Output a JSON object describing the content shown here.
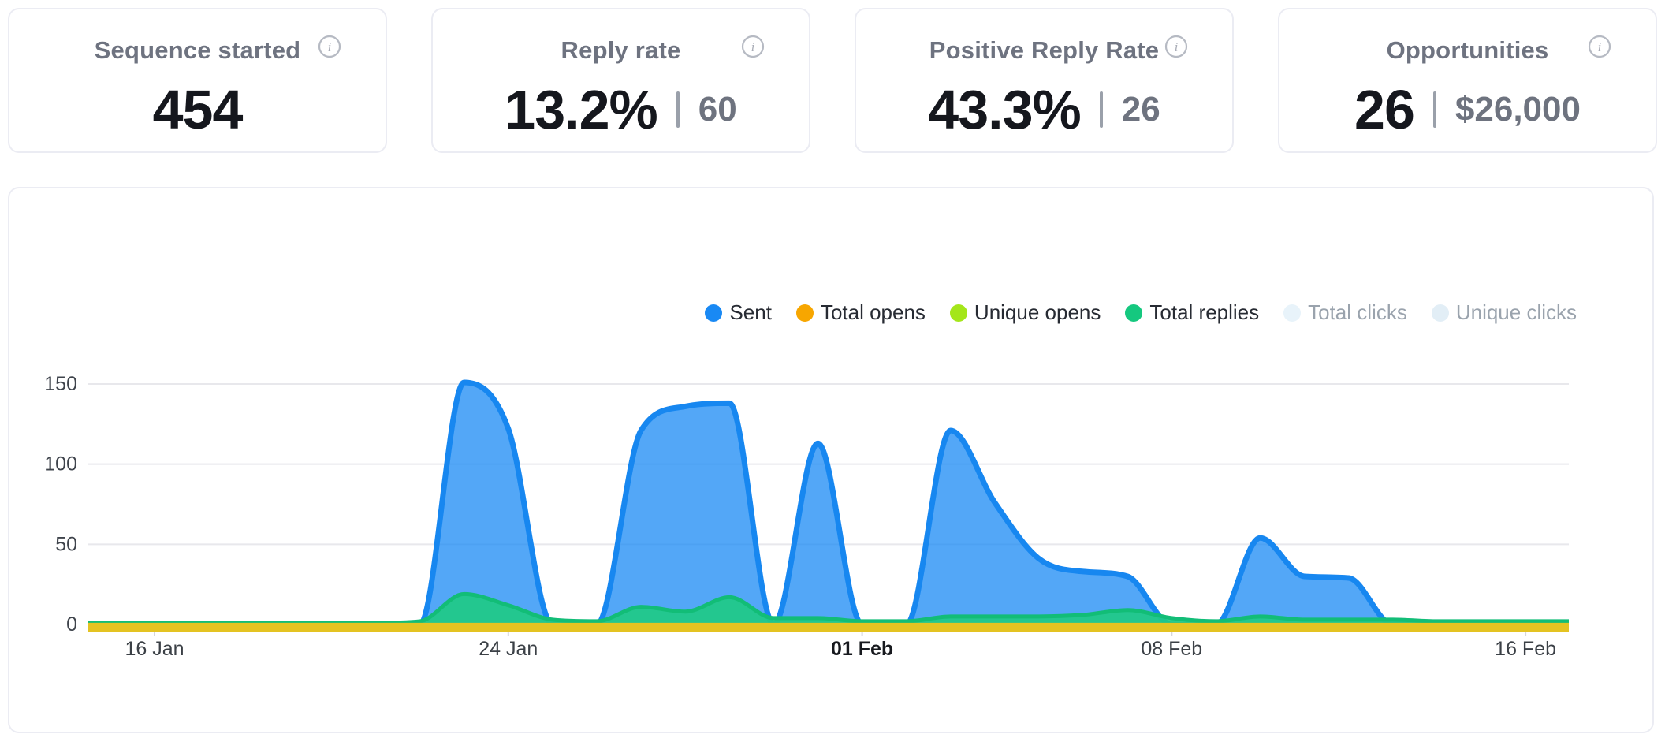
{
  "stat_cards": [
    {
      "title": "Sequence started",
      "value": "454",
      "secondary": ""
    },
    {
      "title": "Reply rate",
      "value": "13.2%",
      "secondary": "60"
    },
    {
      "title": "Positive Reply Rate",
      "value": "43.3%",
      "secondary": "26"
    },
    {
      "title": "Opportunities",
      "value": "26",
      "secondary": "$26,000"
    }
  ],
  "chart": {
    "legend": [
      {
        "label": "Sent",
        "color": "#1989f4",
        "active": true
      },
      {
        "label": "Total opens",
        "color": "#f7a600",
        "active": true
      },
      {
        "label": "Unique opens",
        "color": "#a4e61a",
        "active": true
      },
      {
        "label": "Total replies",
        "color": "#15c87f",
        "active": true
      },
      {
        "label": "Total clicks",
        "color": "#e8f3fa",
        "active": false
      },
      {
        "label": "Unique clicks",
        "color": "#e2eef6",
        "active": false
      }
    ]
  },
  "chart_data": {
    "type": "area",
    "x": [
      "14 Jan",
      "15 Jan",
      "16 Jan",
      "17 Jan",
      "18 Jan",
      "19 Jan",
      "20 Jan",
      "21 Jan",
      "22 Jan",
      "23 Jan",
      "24 Jan",
      "25 Jan",
      "26 Jan",
      "27 Jan",
      "28 Jan",
      "29 Jan",
      "30 Jan",
      "31 Jan",
      "01 Feb",
      "02 Feb",
      "03 Feb",
      "04 Feb",
      "05 Feb",
      "06 Feb",
      "07 Feb",
      "08 Feb",
      "09 Feb",
      "10 Feb",
      "11 Feb",
      "12 Feb",
      "13 Feb",
      "14 Feb",
      "15 Feb",
      "16 Feb",
      "17 Feb"
    ],
    "series": [
      {
        "name": "Sent",
        "color": "#1787f0",
        "fill": "rgba(25,137,244,0.75)",
        "width": 7,
        "dy": 0,
        "values": [
          0,
          0,
          0,
          0,
          0,
          0,
          0,
          0,
          0,
          151,
          122,
          0,
          0,
          121,
          136,
          138,
          0,
          113,
          0,
          0,
          121,
          76,
          41,
          33,
          30,
          0,
          0,
          54,
          30,
          29,
          0,
          0,
          0,
          0,
          0
        ]
      },
      {
        "name": "Total replies",
        "color": "#12bd77",
        "fill": "rgba(31,202,133,0.92)",
        "width": 5,
        "dy": 0,
        "values": [
          1,
          1,
          1,
          1,
          1,
          1,
          1,
          1,
          2,
          19,
          12,
          3,
          2,
          11,
          8,
          17,
          4,
          4,
          2,
          2,
          5,
          5,
          5,
          6,
          9,
          4,
          2,
          5,
          3,
          3,
          3,
          2,
          2,
          2,
          2
        ]
      },
      {
        "name": "Unique opens",
        "color": "#a4e61a",
        "fill": null,
        "width": 4,
        "dy": 8,
        "values": [
          1,
          1,
          1,
          1,
          1,
          1,
          1,
          1,
          1,
          1,
          1,
          1,
          1,
          1,
          1,
          1,
          1,
          1,
          1,
          1,
          1,
          1,
          1,
          1,
          1,
          1,
          1,
          1,
          1,
          1,
          1,
          1,
          1,
          1,
          1
        ]
      },
      {
        "name": "Total opens",
        "color": "#e4c322",
        "fill": null,
        "width": 12,
        "dy": 8,
        "values": [
          2,
          2,
          2,
          2,
          2,
          2,
          2,
          2,
          2,
          2,
          2,
          2,
          2,
          2,
          2,
          2,
          2,
          2,
          2,
          2,
          2,
          2,
          2,
          2,
          2,
          2,
          2,
          2,
          2,
          2,
          2,
          2,
          2,
          2,
          2
        ]
      }
    ],
    "yticks": [
      0,
      50,
      100,
      150
    ],
    "xticks": [
      {
        "label": "16 Jan",
        "i": 2,
        "bold": false
      },
      {
        "label": "24 Jan",
        "i": 10,
        "bold": false
      },
      {
        "label": "01 Feb",
        "i": 18,
        "bold": true
      },
      {
        "label": "08 Feb",
        "i": 25,
        "bold": false
      },
      {
        "label": "16 Feb",
        "i": 33,
        "bold": false
      }
    ],
    "ylim": [
      0,
      165
    ],
    "grid": "horizontal",
    "legend_position": "top-right"
  }
}
